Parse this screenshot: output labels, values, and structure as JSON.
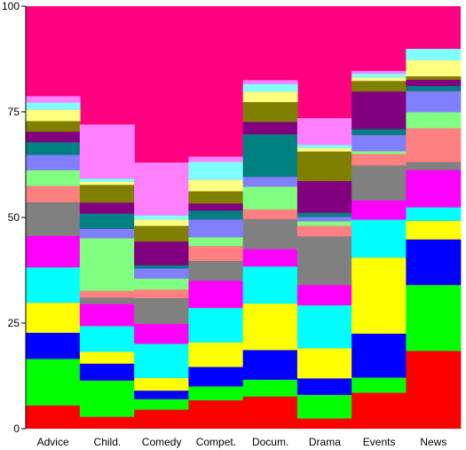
{
  "chart_data": {
    "type": "bar",
    "stacked": true,
    "categories": [
      "Advice",
      "Child.",
      "Comedy",
      "Compet.",
      "Docum.",
      "Drama",
      "Events",
      "News"
    ],
    "ylim": [
      0,
      100
    ],
    "yticks": [
      0,
      25,
      50,
      75,
      100
    ],
    "grid": false,
    "legend": "none",
    "background_color": "#ff0080",
    "series": [
      {
        "color": "#ff0000",
        "values": [
          5.5,
          2.8,
          4.5,
          6.7,
          7.6,
          2.4,
          8.5,
          18.4
        ]
      },
      {
        "color": "#00ff00",
        "values": [
          11.0,
          8.6,
          2.5,
          3.3,
          4.0,
          5.6,
          3.6,
          15.6
        ]
      },
      {
        "color": "#0000ff",
        "values": [
          6.2,
          4.0,
          2.0,
          4.6,
          7.0,
          3.9,
          10.4,
          10.8
        ]
      },
      {
        "color": "#ffff00",
        "values": [
          7.1,
          2.8,
          3.0,
          5.8,
          11.0,
          7.1,
          18.0,
          4.4
        ]
      },
      {
        "color": "#00ffff",
        "values": [
          8.4,
          6.1,
          8.1,
          8.2,
          8.8,
          10.2,
          9.0,
          3.2
        ]
      },
      {
        "color": "#ff00ff",
        "values": [
          7.4,
          5.2,
          4.7,
          6.4,
          4.1,
          4.8,
          4.5,
          8.8
        ]
      },
      {
        "color": "#808080",
        "values": [
          8.0,
          1.5,
          6.1,
          4.7,
          7.1,
          11.5,
          8.3,
          1.9
        ]
      },
      {
        "color": "#ff8080",
        "values": [
          3.8,
          1.6,
          2.0,
          3.5,
          2.3,
          2.5,
          2.7,
          8.0
        ]
      },
      {
        "color": "#80ff80",
        "values": [
          3.8,
          12.5,
          2.6,
          2.1,
          5.4,
          1.1,
          0.7,
          3.8
        ]
      },
      {
        "color": "#8080ff",
        "values": [
          3.6,
          2.2,
          2.4,
          4.2,
          2.3,
          1.0,
          3.8,
          5.0
        ]
      },
      {
        "color": "#008080",
        "values": [
          3.0,
          3.6,
          0.8,
          2.1,
          10.1,
          1.0,
          1.4,
          1.2
        ]
      },
      {
        "color": "#800080",
        "values": [
          2.5,
          2.6,
          5.6,
          1.7,
          2.9,
          7.5,
          8.9,
          1.5
        ]
      },
      {
        "color": "#808000",
        "values": [
          2.5,
          4.2,
          3.7,
          2.9,
          4.7,
          7.0,
          2.5,
          0.8
        ]
      },
      {
        "color": "#ffff80",
        "values": [
          2.7,
          0.7,
          1.5,
          2.7,
          2.5,
          0.8,
          0.8,
          3.8
        ]
      },
      {
        "color": "#80ffff",
        "values": [
          1.7,
          0.8,
          1.0,
          4.3,
          1.8,
          0.8,
          1.0,
          2.7
        ]
      },
      {
        "color": "#ff80ff",
        "values": [
          1.5,
          12.8,
          12.5,
          1.2,
          0.9,
          6.3,
          0.6,
          0.0
        ]
      }
    ]
  }
}
